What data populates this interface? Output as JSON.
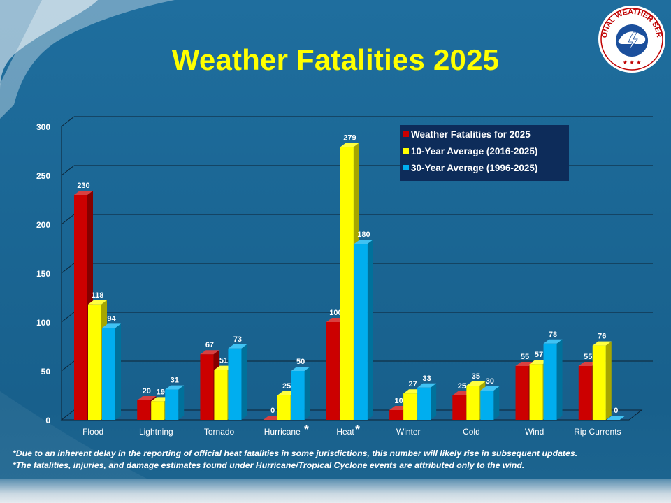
{
  "title": "Weather Fatalities 2025",
  "logo": {
    "icon": "national-weather-service-logo",
    "text": "NATIONAL WEATHER SERVICE"
  },
  "colors": {
    "accent_title": "#ffff00",
    "series_2025": "#cc0000",
    "series_10yr": "#ffff00",
    "series_30yr": "#00aeef",
    "legend_bg": "#0d2c5a"
  },
  "chart_data": {
    "type": "bar",
    "categories": [
      "Flood",
      "Lightning",
      "Tornado",
      "Hurricane",
      "Heat",
      "Winter",
      "Cold",
      "Wind",
      "Rip Currents"
    ],
    "category_markers": [
      "",
      "",
      "",
      "*",
      "*",
      "",
      "",
      "",
      ""
    ],
    "series": [
      {
        "name": "Weather Fatalities for 2025",
        "color": "#cc0000",
        "values": [
          230,
          20,
          67,
          0,
          100,
          10,
          25,
          55,
          55
        ]
      },
      {
        "name": "10-Year Average (2016-2025)",
        "color": "#ffff00",
        "values": [
          118,
          19,
          51,
          25,
          279,
          27,
          35,
          57,
          76
        ]
      },
      {
        "name": "30-Year Average (1996-2025)",
        "color": "#00aeef",
        "values": [
          94,
          31,
          73,
          50,
          180,
          33,
          30,
          78,
          0
        ]
      }
    ],
    "yticks": [
      0,
      50,
      100,
      150,
      200,
      250,
      300
    ],
    "ylim": [
      0,
      300
    ],
    "grid": true,
    "legend_position": "top-right",
    "style": "3d"
  },
  "footnotes": [
    "*Due to an inherent delay in the reporting of official heat fatalities in some jurisdictions, this number will likely rise in subsequent updates.",
    "*The fatalities, injuries, and damage estimates found under Hurricane/Tropical Cyclone events are attributed only to the wind."
  ]
}
